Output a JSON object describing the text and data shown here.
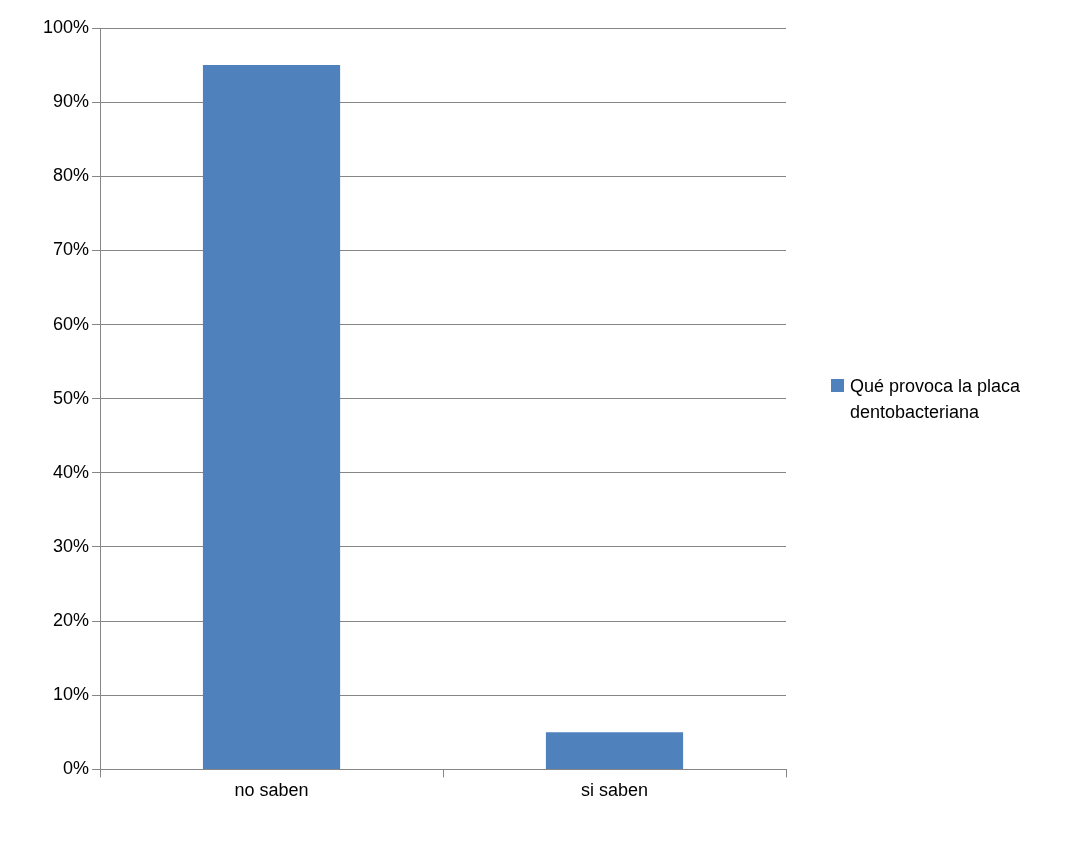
{
  "chart_data": {
    "type": "bar",
    "categories": [
      "no saben",
      "si saben"
    ],
    "series": [
      {
        "name": "Qué provoca la placa dentobacteriana",
        "color": "#4f81bd",
        "values": [
          95,
          5
        ]
      }
    ],
    "ylim": [
      0,
      100
    ],
    "yticks": [
      {
        "value": 0,
        "label": "0%"
      },
      {
        "value": 10,
        "label": "10%"
      },
      {
        "value": 20,
        "label": "20%"
      },
      {
        "value": 30,
        "label": "30%"
      },
      {
        "value": 40,
        "label": "40%"
      },
      {
        "value": 50,
        "label": "50%"
      },
      {
        "value": 60,
        "label": "60%"
      },
      {
        "value": 70,
        "label": "70%"
      },
      {
        "value": 80,
        "label": "80%"
      },
      {
        "value": 90,
        "label": "90%"
      },
      {
        "value": 100,
        "label": "100%"
      }
    ],
    "grid": "y",
    "legend": "right"
  }
}
